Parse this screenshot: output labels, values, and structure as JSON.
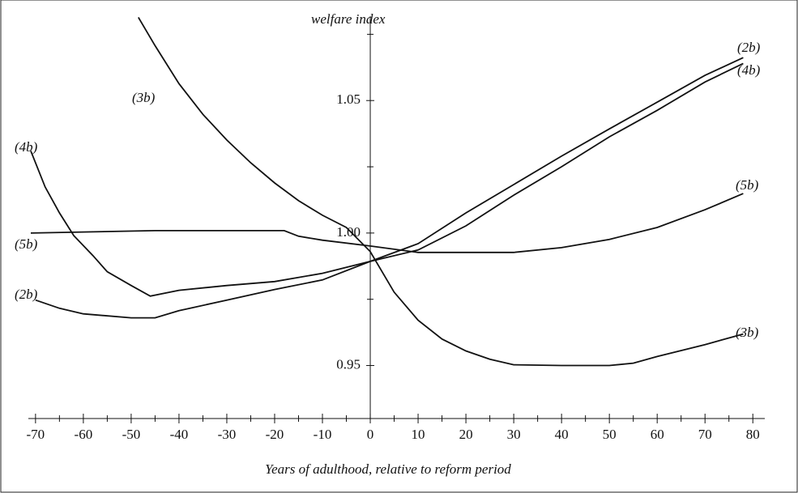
{
  "chart_data": {
    "type": "line",
    "ylabel": "welfare index",
    "xlabel": "Years of adulthood, relative to reform period",
    "xlim": [
      -71.5,
      82.5
    ],
    "xticks": [
      -70,
      -60,
      -50,
      -40,
      -30,
      -20,
      -10,
      0,
      10,
      20,
      30,
      40,
      50,
      60,
      70,
      80
    ],
    "xticks_minor": [
      -65,
      -55,
      -45,
      -35,
      -25,
      -15,
      -5,
      5,
      15,
      25,
      35,
      45,
      55,
      65,
      75
    ],
    "ylim": [
      0.93,
      1.08
    ],
    "yticks": [
      0.95,
      {
        "value": 1.0,
        "label": "1.00"
      },
      1.05
    ],
    "yticks_minor": [
      0.975,
      1.025,
      1.075
    ],
    "series": [
      {
        "name": "(2b)",
        "color": "#111111",
        "x": [
          -70,
          -65,
          -60,
          -50,
          -45,
          -40,
          -30,
          -20,
          -10,
          0,
          10,
          20,
          30,
          40,
          50,
          60,
          70,
          78
        ],
        "values": [
          0.9747,
          0.9716,
          0.9695,
          0.968,
          0.968,
          0.9707,
          0.9747,
          0.9787,
          0.9823,
          0.9893,
          0.996,
          1.0076,
          1.0183,
          1.029,
          1.0393,
          1.0494,
          1.0595,
          1.0662
        ]
      },
      {
        "name": "(4b)",
        "color": "#111111",
        "x": [
          -71,
          -68,
          -65,
          -62,
          -58,
          -55,
          -50,
          -46,
          -40,
          -30,
          -20,
          -10,
          0,
          10,
          20,
          30,
          40,
          50,
          60,
          70,
          78
        ],
        "values": [
          1.031,
          1.0174,
          1.0076,
          0.999,
          0.9915,
          0.9854,
          0.9802,
          0.9762,
          0.9784,
          0.9802,
          0.9817,
          0.9848,
          0.9893,
          0.9936,
          1.0027,
          1.0143,
          1.025,
          1.0363,
          1.0463,
          1.057,
          1.064
        ]
      },
      {
        "name": "(3b)",
        "color": "#111111",
        "x": [
          -48.5,
          -45,
          -40,
          -35,
          -30,
          -25,
          -20,
          -15,
          -10,
          -5,
          0,
          5,
          10,
          15,
          20,
          25,
          30,
          40,
          50,
          55,
          60,
          70,
          78
        ],
        "values": [
          1.0814,
          1.0707,
          1.0564,
          1.0448,
          1.0351,
          1.0265,
          1.0189,
          1.0122,
          1.0067,
          1.0021,
          0.993,
          0.9777,
          0.9671,
          0.96,
          0.9555,
          0.9524,
          0.9503,
          0.95,
          0.95,
          0.9509,
          0.9534,
          0.9579,
          0.9619
        ]
      },
      {
        "name": "(5b)",
        "color": "#111111",
        "x": [
          -71,
          -45,
          -18,
          -15,
          -10,
          0,
          10,
          30,
          40,
          50,
          60,
          70,
          78
        ],
        "values": [
          1.0,
          1.0009,
          1.0009,
          0.9988,
          0.9973,
          0.9951,
          0.9927,
          0.9927,
          0.9945,
          0.9976,
          1.0021,
          1.0088,
          1.0149
        ]
      }
    ]
  }
}
